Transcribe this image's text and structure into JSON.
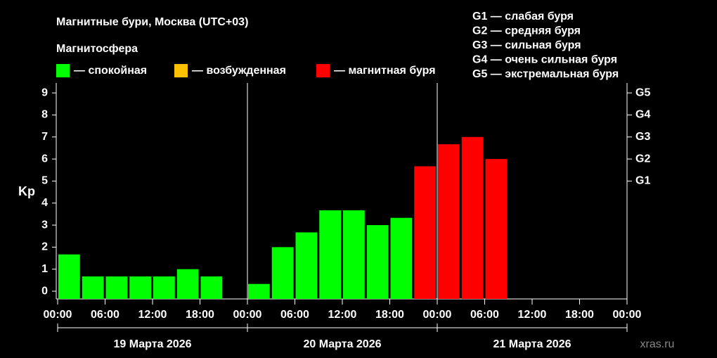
{
  "chart_data": {
    "type": "bar",
    "title": "Магнитные бури, Москва (UTC+03)",
    "legend_title": "Магнитосфера",
    "legend": [
      {
        "label": "— спокойная",
        "color": "#00ff00"
      },
      {
        "label": "— возбужденная",
        "color": "#ffc000"
      },
      {
        "label": "— магнитная буря",
        "color": "#ff0000"
      }
    ],
    "scale_notes": [
      "G1 — слабая буря",
      "G2 — средняя буря",
      "G3 — сильная буря",
      "G4 — очень сильная буря",
      "G5 — экстремальная буря"
    ],
    "ylabel": "Kp",
    "x": [
      0,
      3,
      6,
      9,
      12,
      15,
      18,
      21,
      24,
      27,
      30,
      33,
      36,
      39,
      42,
      45,
      48,
      51,
      54,
      57,
      60,
      63,
      66,
      69
    ],
    "values": [
      1.67,
      0.67,
      0.67,
      0.67,
      0.67,
      1.0,
      0.67,
      null,
      0.33,
      2.0,
      2.67,
      3.67,
      3.67,
      3.0,
      3.33,
      5.67,
      6.67,
      7.0,
      6.0,
      null,
      null,
      null,
      null,
      null
    ],
    "colors": [
      "#00ff00",
      "#00ff00",
      "#00ff00",
      "#00ff00",
      "#00ff00",
      "#00ff00",
      "#00ff00",
      null,
      "#00ff00",
      "#00ff00",
      "#00ff00",
      "#00ff00",
      "#00ff00",
      "#00ff00",
      "#00ff00",
      "#ff0000",
      "#ff0000",
      "#ff0000",
      "#ff0000",
      null,
      null,
      null,
      null,
      null
    ],
    "xlim": [
      0,
      72
    ],
    "xticks": [
      {
        "value": 0,
        "label": "00:00"
      },
      {
        "value": 6,
        "label": "06:00"
      },
      {
        "value": 12,
        "label": "12:00"
      },
      {
        "value": 18,
        "label": "18:00"
      },
      {
        "value": 24,
        "label": "00:00"
      },
      {
        "value": 30,
        "label": "06:00"
      },
      {
        "value": 36,
        "label": "12:00"
      },
      {
        "value": 42,
        "label": "18:00"
      },
      {
        "value": 48,
        "label": "00:00"
      },
      {
        "value": 54,
        "label": "06:00"
      },
      {
        "value": 60,
        "label": "12:00"
      },
      {
        "value": 66,
        "label": "18:00"
      },
      {
        "value": 72,
        "label": "00:00"
      }
    ],
    "day_labels": [
      "19 Марта 2026",
      "20 Марта 2026",
      "21 Марта 2026"
    ],
    "ylim": [
      -0.35,
      9.45
    ],
    "yticks": [
      0,
      1,
      2,
      3,
      4,
      5,
      6,
      7,
      8,
      9
    ],
    "y2lim": [
      -0.35,
      9.45
    ],
    "y2ticks": [
      {
        "value": 5,
        "label": "G1"
      },
      {
        "value": 6,
        "label": "G2"
      },
      {
        "value": 7,
        "label": "G3"
      },
      {
        "value": 8,
        "label": "G4"
      },
      {
        "value": 9,
        "label": "G5"
      }
    ],
    "watermark": "xras.ru"
  }
}
